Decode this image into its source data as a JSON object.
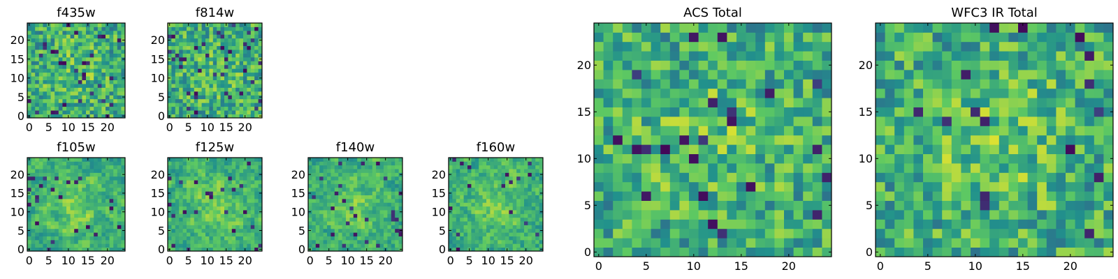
{
  "figure": {
    "colormap": [
      "#440154",
      "#3b528b",
      "#21918c",
      "#5ec962",
      "#fde725"
    ],
    "border_color": "#000000"
  },
  "chart_data": [
    {
      "type": "heatmap",
      "title": "f435w",
      "grid_size": 25,
      "xlim": [
        0,
        25
      ],
      "ylim": [
        0,
        25
      ],
      "xticks": [
        0,
        5,
        10,
        15,
        20
      ],
      "yticks": [
        0,
        5,
        10,
        15,
        20
      ],
      "colormap": "viridis",
      "pattern": {
        "seed": 435,
        "blur": 0,
        "center_boost": 0.08,
        "dark_frac": 0.05
      }
    },
    {
      "type": "heatmap",
      "title": "f814w",
      "grid_size": 25,
      "xlim": [
        0,
        25
      ],
      "ylim": [
        0,
        25
      ],
      "xticks": [
        0,
        5,
        10,
        15,
        20
      ],
      "yticks": [
        0,
        5,
        10,
        15,
        20
      ],
      "colormap": "viridis",
      "pattern": {
        "seed": 814,
        "blur": 0,
        "center_boost": 0.06,
        "dark_frac": 0.06
      }
    },
    {
      "type": "heatmap",
      "title": "f105w",
      "grid_size": 25,
      "xlim": [
        0,
        25
      ],
      "ylim": [
        0,
        25
      ],
      "xticks": [
        0,
        5,
        10,
        15,
        20
      ],
      "yticks": [
        0,
        5,
        10,
        15,
        20
      ],
      "colormap": "viridis",
      "pattern": {
        "seed": 105,
        "blur": 1,
        "center_boost": 0.18,
        "dark_frac": 0.04
      }
    },
    {
      "type": "heatmap",
      "title": "f125w",
      "grid_size": 25,
      "xlim": [
        0,
        25
      ],
      "ylim": [
        0,
        25
      ],
      "xticks": [
        0,
        5,
        10,
        15,
        20
      ],
      "yticks": [
        0,
        5,
        10,
        15,
        20
      ],
      "colormap": "viridis",
      "pattern": {
        "seed": 125,
        "blur": 1,
        "center_boost": 0.16,
        "dark_frac": 0.04
      }
    },
    {
      "type": "heatmap",
      "title": "f140w",
      "grid_size": 25,
      "xlim": [
        0,
        25
      ],
      "ylim": [
        0,
        25
      ],
      "xticks": [
        0,
        5,
        10,
        15,
        20
      ],
      "yticks": [
        0,
        5,
        10,
        15,
        20
      ],
      "colormap": "viridis",
      "pattern": {
        "seed": 140,
        "blur": 1,
        "center_boost": 0.15,
        "dark_frac": 0.04
      }
    },
    {
      "type": "heatmap",
      "title": "f160w",
      "grid_size": 25,
      "xlim": [
        0,
        25
      ],
      "ylim": [
        0,
        25
      ],
      "xticks": [
        0,
        5,
        10,
        15,
        20
      ],
      "yticks": [
        0,
        5,
        10,
        15,
        20
      ],
      "colormap": "viridis",
      "pattern": {
        "seed": 160,
        "blur": 1,
        "center_boost": 0.15,
        "dark_frac": 0.04
      }
    },
    {
      "type": "heatmap",
      "title": "ACS Total",
      "grid_size": 25,
      "xlim": [
        0,
        25
      ],
      "ylim": [
        0,
        25
      ],
      "xticks": [
        0,
        5,
        10,
        15,
        20
      ],
      "yticks": [
        0,
        5,
        10,
        15,
        20
      ],
      "colormap": "viridis",
      "pattern": {
        "seed": 1249,
        "blur": 0,
        "center_boost": 0.1,
        "dark_frac": 0.035
      }
    },
    {
      "type": "heatmap",
      "title": "WFC3 IR Total",
      "grid_size": 25,
      "xlim": [
        0,
        25
      ],
      "ylim": [
        0,
        25
      ],
      "xticks": [
        0,
        5,
        10,
        15,
        20
      ],
      "yticks": [
        0,
        5,
        10,
        15,
        20
      ],
      "colormap": "viridis",
      "pattern": {
        "seed": 530,
        "blur": 0,
        "center_boost": 0.14,
        "dark_frac": 0.03
      }
    }
  ]
}
